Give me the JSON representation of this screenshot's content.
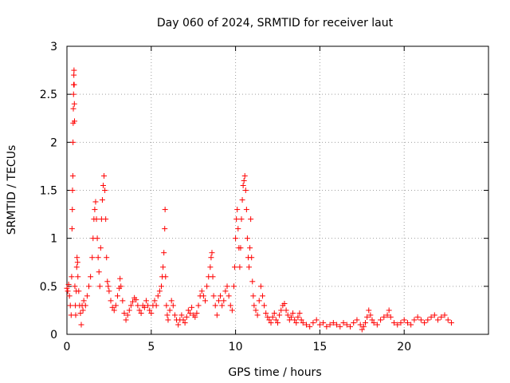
{
  "chart_data": {
    "type": "scatter",
    "title": "Day 060 of 2024, SRMTID for receiver laut",
    "xlabel": "GPS time / hours",
    "ylabel": "SRMTID / TECUs",
    "xlim": [
      0,
      25
    ],
    "ylim": [
      0,
      3
    ],
    "xticks": [
      0,
      5,
      10,
      15,
      20
    ],
    "yticks": [
      0,
      0.5,
      1,
      1.5,
      2,
      2.5,
      3
    ],
    "xtick_labels": [
      "0",
      "5",
      "10",
      "15",
      "20"
    ],
    "ytick_labels": [
      "0",
      "0.5",
      "1",
      "1.5",
      "2",
      "2.5",
      "3"
    ],
    "grid": true,
    "marker": "+",
    "color": "#ff0000",
    "series": [
      {
        "name": "SRMTID",
        "points": [
          [
            0.0,
            0.48
          ],
          [
            0.05,
            0.45
          ],
          [
            0.1,
            0.52
          ],
          [
            0.15,
            0.4
          ],
          [
            0.2,
            0.3
          ],
          [
            0.25,
            0.2
          ],
          [
            0.28,
            0.6
          ],
          [
            0.3,
            1.1
          ],
          [
            0.32,
            1.3
          ],
          [
            0.33,
            1.5
          ],
          [
            0.35,
            1.65
          ],
          [
            0.36,
            2.0
          ],
          [
            0.37,
            2.2
          ],
          [
            0.38,
            2.35
          ],
          [
            0.39,
            2.5
          ],
          [
            0.4,
            2.6
          ],
          [
            0.41,
            2.7
          ],
          [
            0.42,
            2.75
          ],
          [
            0.43,
            2.6
          ],
          [
            0.44,
            2.4
          ],
          [
            0.45,
            2.22
          ],
          [
            0.47,
            0.5
          ],
          [
            0.5,
            0.3
          ],
          [
            0.52,
            0.2
          ],
          [
            0.55,
            0.45
          ],
          [
            0.58,
            0.7
          ],
          [
            0.6,
            0.8
          ],
          [
            0.63,
            0.75
          ],
          [
            0.65,
            0.6
          ],
          [
            0.7,
            0.45
          ],
          [
            0.75,
            0.3
          ],
          [
            0.8,
            0.22
          ],
          [
            0.85,
            0.1
          ],
          [
            0.9,
            0.3
          ],
          [
            0.95,
            0.25
          ],
          [
            1.0,
            0.35
          ],
          [
            1.1,
            0.3
          ],
          [
            1.2,
            0.4
          ],
          [
            1.3,
            0.5
          ],
          [
            1.4,
            0.6
          ],
          [
            1.5,
            0.8
          ],
          [
            1.55,
            1.0
          ],
          [
            1.6,
            1.2
          ],
          [
            1.65,
            1.3
          ],
          [
            1.7,
            1.38
          ],
          [
            1.75,
            1.2
          ],
          [
            1.8,
            1.0
          ],
          [
            1.85,
            0.8
          ],
          [
            1.9,
            0.65
          ],
          [
            1.95,
            0.5
          ],
          [
            2.0,
            0.9
          ],
          [
            2.05,
            1.2
          ],
          [
            2.1,
            1.4
          ],
          [
            2.15,
            1.55
          ],
          [
            2.2,
            1.65
          ],
          [
            2.25,
            1.5
          ],
          [
            2.3,
            1.2
          ],
          [
            2.35,
            0.8
          ],
          [
            2.4,
            0.55
          ],
          [
            2.45,
            0.5
          ],
          [
            2.5,
            0.45
          ],
          [
            2.6,
            0.35
          ],
          [
            2.7,
            0.28
          ],
          [
            2.8,
            0.25
          ],
          [
            2.9,
            0.3
          ],
          [
            3.0,
            0.4
          ],
          [
            3.1,
            0.48
          ],
          [
            3.15,
            0.58
          ],
          [
            3.2,
            0.5
          ],
          [
            3.3,
            0.35
          ],
          [
            3.4,
            0.22
          ],
          [
            3.5,
            0.15
          ],
          [
            3.6,
            0.2
          ],
          [
            3.7,
            0.25
          ],
          [
            3.8,
            0.3
          ],
          [
            3.9,
            0.34
          ],
          [
            4.0,
            0.38
          ],
          [
            4.1,
            0.36
          ],
          [
            4.2,
            0.3
          ],
          [
            4.3,
            0.25
          ],
          [
            4.4,
            0.22
          ],
          [
            4.5,
            0.3
          ],
          [
            4.6,
            0.28
          ],
          [
            4.7,
            0.35
          ],
          [
            4.8,
            0.3
          ],
          [
            4.9,
            0.25
          ],
          [
            5.0,
            0.22
          ],
          [
            5.1,
            0.3
          ],
          [
            5.2,
            0.35
          ],
          [
            5.3,
            0.3
          ],
          [
            5.4,
            0.4
          ],
          [
            5.5,
            0.45
          ],
          [
            5.6,
            0.5
          ],
          [
            5.65,
            0.6
          ],
          [
            5.7,
            0.7
          ],
          [
            5.75,
            0.85
          ],
          [
            5.8,
            1.1
          ],
          [
            5.82,
            1.3
          ],
          [
            5.85,
            0.6
          ],
          [
            5.9,
            0.3
          ],
          [
            5.95,
            0.2
          ],
          [
            6.0,
            0.15
          ],
          [
            6.1,
            0.25
          ],
          [
            6.2,
            0.35
          ],
          [
            6.3,
            0.3
          ],
          [
            6.4,
            0.2
          ],
          [
            6.5,
            0.15
          ],
          [
            6.6,
            0.1
          ],
          [
            6.7,
            0.15
          ],
          [
            6.8,
            0.2
          ],
          [
            6.9,
            0.15
          ],
          [
            7.0,
            0.12
          ],
          [
            7.1,
            0.18
          ],
          [
            7.2,
            0.25
          ],
          [
            7.3,
            0.22
          ],
          [
            7.4,
            0.28
          ],
          [
            7.5,
            0.2
          ],
          [
            7.6,
            0.18
          ],
          [
            7.7,
            0.22
          ],
          [
            7.8,
            0.3
          ],
          [
            7.9,
            0.4
          ],
          [
            8.0,
            0.45
          ],
          [
            8.1,
            0.4
          ],
          [
            8.2,
            0.35
          ],
          [
            8.3,
            0.5
          ],
          [
            8.4,
            0.6
          ],
          [
            8.5,
            0.7
          ],
          [
            8.55,
            0.8
          ],
          [
            8.6,
            0.85
          ],
          [
            8.65,
            0.6
          ],
          [
            8.7,
            0.4
          ],
          [
            8.8,
            0.3
          ],
          [
            8.9,
            0.2
          ],
          [
            9.0,
            0.35
          ],
          [
            9.1,
            0.4
          ],
          [
            9.2,
            0.3
          ],
          [
            9.3,
            0.35
          ],
          [
            9.4,
            0.45
          ],
          [
            9.5,
            0.5
          ],
          [
            9.6,
            0.4
          ],
          [
            9.7,
            0.3
          ],
          [
            9.8,
            0.25
          ],
          [
            9.9,
            0.5
          ],
          [
            9.95,
            0.7
          ],
          [
            10.0,
            1.0
          ],
          [
            10.05,
            1.2
          ],
          [
            10.1,
            1.3
          ],
          [
            10.15,
            1.1
          ],
          [
            10.2,
            0.9
          ],
          [
            10.25,
            0.7
          ],
          [
            10.3,
            0.9
          ],
          [
            10.35,
            1.2
          ],
          [
            10.4,
            1.4
          ],
          [
            10.45,
            1.55
          ],
          [
            10.5,
            1.6
          ],
          [
            10.55,
            1.65
          ],
          [
            10.6,
            1.5
          ],
          [
            10.65,
            1.3
          ],
          [
            10.7,
            1.0
          ],
          [
            10.75,
            0.8
          ],
          [
            10.8,
            0.7
          ],
          [
            10.85,
            0.9
          ],
          [
            10.9,
            1.2
          ],
          [
            10.95,
            0.8
          ],
          [
            11.0,
            0.55
          ],
          [
            11.05,
            0.4
          ],
          [
            11.1,
            0.3
          ],
          [
            11.2,
            0.25
          ],
          [
            11.3,
            0.2
          ],
          [
            11.4,
            0.35
          ],
          [
            11.5,
            0.5
          ],
          [
            11.6,
            0.4
          ],
          [
            11.7,
            0.3
          ],
          [
            11.8,
            0.22
          ],
          [
            11.9,
            0.18
          ],
          [
            12.0,
            0.15
          ],
          [
            12.1,
            0.12
          ],
          [
            12.2,
            0.18
          ],
          [
            12.3,
            0.22
          ],
          [
            12.4,
            0.15
          ],
          [
            12.5,
            0.12
          ],
          [
            12.6,
            0.2
          ],
          [
            12.7,
            0.25
          ],
          [
            12.8,
            0.3
          ],
          [
            12.9,
            0.32
          ],
          [
            13.0,
            0.25
          ],
          [
            13.1,
            0.2
          ],
          [
            13.2,
            0.15
          ],
          [
            13.3,
            0.18
          ],
          [
            13.4,
            0.22
          ],
          [
            13.5,
            0.15
          ],
          [
            13.6,
            0.12
          ],
          [
            13.7,
            0.18
          ],
          [
            13.8,
            0.22
          ],
          [
            13.9,
            0.15
          ],
          [
            14.0,
            0.12
          ],
          [
            14.2,
            0.1
          ],
          [
            14.4,
            0.08
          ],
          [
            14.6,
            0.12
          ],
          [
            14.8,
            0.15
          ],
          [
            15.0,
            0.1
          ],
          [
            15.2,
            0.12
          ],
          [
            15.4,
            0.08
          ],
          [
            15.6,
            0.1
          ],
          [
            15.8,
            0.12
          ],
          [
            16.0,
            0.1
          ],
          [
            16.2,
            0.08
          ],
          [
            16.4,
            0.12
          ],
          [
            16.6,
            0.1
          ],
          [
            16.8,
            0.08
          ],
          [
            17.0,
            0.12
          ],
          [
            17.2,
            0.15
          ],
          [
            17.4,
            0.1
          ],
          [
            17.5,
            0.05
          ],
          [
            17.6,
            0.08
          ],
          [
            17.7,
            0.12
          ],
          [
            17.8,
            0.18
          ],
          [
            17.9,
            0.25
          ],
          [
            18.0,
            0.2
          ],
          [
            18.1,
            0.15
          ],
          [
            18.2,
            0.12
          ],
          [
            18.4,
            0.1
          ],
          [
            18.6,
            0.15
          ],
          [
            18.8,
            0.18
          ],
          [
            19.0,
            0.2
          ],
          [
            19.1,
            0.25
          ],
          [
            19.2,
            0.18
          ],
          [
            19.4,
            0.12
          ],
          [
            19.6,
            0.1
          ],
          [
            19.8,
            0.12
          ],
          [
            20.0,
            0.15
          ],
          [
            20.2,
            0.12
          ],
          [
            20.4,
            0.1
          ],
          [
            20.6,
            0.15
          ],
          [
            20.8,
            0.18
          ],
          [
            21.0,
            0.15
          ],
          [
            21.2,
            0.12
          ],
          [
            21.4,
            0.15
          ],
          [
            21.6,
            0.18
          ],
          [
            21.8,
            0.2
          ],
          [
            22.0,
            0.15
          ],
          [
            22.2,
            0.18
          ],
          [
            22.4,
            0.2
          ],
          [
            22.6,
            0.15
          ],
          [
            22.8,
            0.12
          ]
        ]
      }
    ]
  }
}
